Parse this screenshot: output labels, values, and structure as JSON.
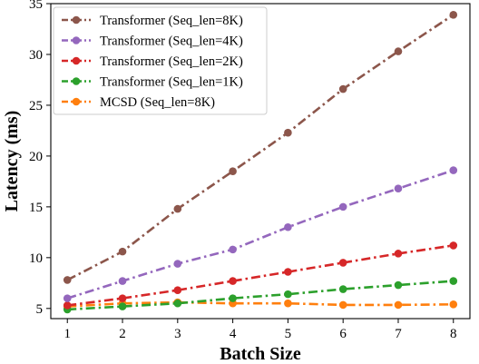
{
  "chart_data": {
    "type": "line",
    "title": "",
    "xlabel": "Batch Size",
    "ylabel": "Latency (ms)",
    "x": [
      1,
      2,
      3,
      4,
      5,
      6,
      7,
      8
    ],
    "xlim": [
      0.7,
      8.3
    ],
    "ylim": [
      4,
      35
    ],
    "xticks": [
      1,
      2,
      3,
      4,
      5,
      6,
      7,
      8
    ],
    "yticks": [
      5,
      10,
      15,
      20,
      25,
      30,
      35
    ],
    "grid": false,
    "legend_position": "top-left",
    "line_style": "dash-dot with circle markers",
    "series": [
      {
        "name": "Transformer (Seq_len=8K)",
        "color": "#8c564b",
        "values": [
          7.8,
          10.6,
          14.8,
          18.5,
          22.3,
          26.6,
          30.3,
          33.9
        ]
      },
      {
        "name": "Transformer (Seq_len=4K)",
        "color": "#9467bd",
        "values": [
          6.0,
          7.7,
          9.4,
          10.8,
          13.0,
          15.0,
          16.8,
          18.6
        ]
      },
      {
        "name": "Transformer (Seq_len=2K)",
        "color": "#d62728",
        "values": [
          5.3,
          6.0,
          6.8,
          7.7,
          8.6,
          9.5,
          10.4,
          11.2
        ]
      },
      {
        "name": "Transformer (Seq_len=1K)",
        "color": "#2ca02c",
        "values": [
          4.9,
          5.2,
          5.5,
          6.0,
          6.4,
          6.9,
          7.3,
          7.7
        ]
      },
      {
        "name": "MCSD (Seq_len=8K)",
        "color": "#ff7f0e",
        "values": [
          5.2,
          5.5,
          5.6,
          5.5,
          5.5,
          5.35,
          5.35,
          5.4
        ]
      }
    ]
  }
}
